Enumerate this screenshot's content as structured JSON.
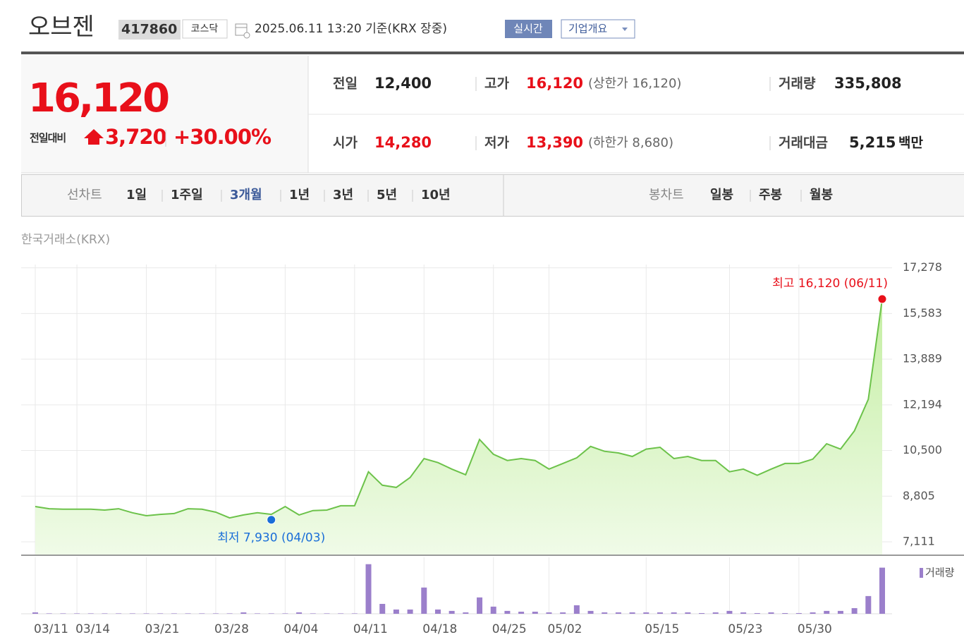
{
  "header": {
    "name": "오브젠",
    "code": "417860",
    "market": "코스닥",
    "time": "2025.06.11 13:20 기준(KRX 장중)",
    "buttons": [
      "실시간",
      "기업개요"
    ]
  },
  "price": {
    "current": "16,120",
    "change_label": "전일대비",
    "change": "3,720",
    "rate": "+30.00%"
  },
  "stats": [
    {
      "label": "전일",
      "value": "12,400"
    },
    {
      "label": "고가",
      "value": "16,120",
      "sub": "(상한가 16,120)"
    },
    {
      "label": "거래량",
      "value": "335,808"
    },
    {
      "label": "시가",
      "value": "14,280"
    },
    {
      "label": "저가",
      "value": "13,390",
      "sub": "(하한가 8,680)"
    },
    {
      "label": "거래대금",
      "value": "5,215",
      "unit": "백만"
    }
  ],
  "tabs": {
    "line_label": "선차트",
    "line_items": [
      "1일",
      "1주일",
      "3개월",
      "1년",
      "3년",
      "5년",
      "10년"
    ],
    "active": 2,
    "candle_label": "봉차트",
    "candle_items": [
      "일봉",
      "주봉",
      "월봉"
    ]
  },
  "chart_data": [
    {
      "type": "line",
      "source": "한국거래소(KRX)",
      "color": "#6cc24a",
      "categories": [
        "03/11",
        null,
        null,
        "03/14",
        null,
        null,
        null,
        null,
        "03/21",
        null,
        null,
        null,
        null,
        "03/28",
        null,
        null,
        null,
        null,
        "04/04",
        null,
        null,
        null,
        null,
        "04/11",
        null,
        null,
        null,
        null,
        "04/18",
        null,
        null,
        null,
        null,
        "04/25",
        null,
        null,
        null,
        "05/02",
        null,
        null,
        null,
        null,
        null,
        null,
        "05/15",
        null,
        null,
        null,
        null,
        null,
        "05/23",
        null,
        null,
        null,
        null,
        "05/30",
        null,
        null,
        null,
        null,
        null,
        null
      ],
      "values": [
        8420,
        8340,
        8320,
        8320,
        8320,
        8290,
        8340,
        8190,
        8080,
        8130,
        8160,
        8340,
        8320,
        8210,
        8000,
        8110,
        8190,
        8130,
        8420,
        8110,
        8270,
        8290,
        8450,
        8450,
        9710,
        9210,
        9130,
        9500,
        10200,
        10050,
        9810,
        9600,
        10910,
        10360,
        10130,
        10200,
        10130,
        9810,
        10020,
        10230,
        10650,
        10470,
        10410,
        10280,
        10550,
        10620,
        10200,
        10280,
        10130,
        10130,
        9710,
        9810,
        9580,
        9810,
        10020,
        10020,
        10180,
        10750,
        10550,
        11230,
        12400,
        16120
      ],
      "ylim": [
        6640,
        17400
      ],
      "yticks": [
        {
          "value": 7111,
          "label": "7,111"
        },
        {
          "value": 8805,
          "label": "8,805"
        },
        {
          "value": 10500,
          "label": "10,500"
        },
        {
          "value": 12194,
          "label": "12,194"
        },
        {
          "value": 13889,
          "label": "13,889"
        },
        {
          "value": 15583,
          "label": "15,583"
        },
        {
          "value": 17278,
          "label": "17,278"
        }
      ],
      "grid": true,
      "annotations": [
        {
          "text": "최고 16,120 (06/11)",
          "value": 16120,
          "color": "#e8101a"
        },
        {
          "text": "최저 7,930 (04/03)",
          "value": 7930,
          "color": "#1a6ed8"
        }
      ]
    },
    {
      "type": "bar",
      "ylim": [
        0,
        380000
      ],
      "series": [
        {
          "name": "거래량",
          "color": "#9b7fcb",
          "values": [
            10000,
            3000,
            3000,
            3000,
            3000,
            3000,
            3000,
            3000,
            3000,
            3000,
            3000,
            3000,
            3000,
            3000,
            3000,
            10000,
            3000,
            3000,
            3000,
            10000,
            3000,
            3000,
            3000,
            3000,
            361000,
            72000,
            31000,
            31000,
            191000,
            31000,
            21000,
            10000,
            119000,
            52000,
            21000,
            15000,
            15000,
            10000,
            10000,
            62000,
            21000,
            10000,
            10000,
            10000,
            10000,
            10000,
            10000,
            10000,
            5000,
            10000,
            21000,
            10000,
            5000,
            10000,
            5000,
            5000,
            10000,
            21000,
            21000,
            41000,
            129000,
            335808
          ]
        }
      ]
    }
  ]
}
